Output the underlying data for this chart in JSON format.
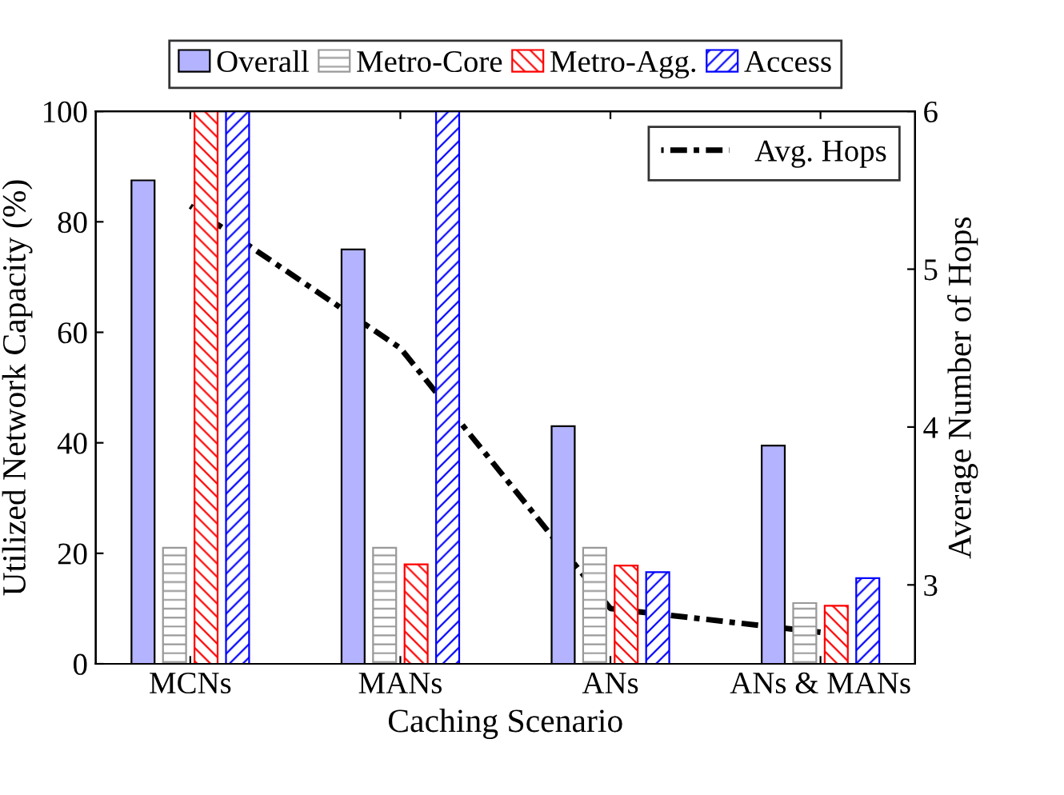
{
  "chart_data": {
    "type": "bar",
    "xlabel": "Caching Scenario",
    "ylabel": "Utilized Network Capacity (%)",
    "y2label": "Average Number of Hops",
    "categories": [
      "MCNs",
      "MANs",
      "ANs",
      "ANs & MANs"
    ],
    "series": [
      {
        "name": "Overall",
        "color": "#b3b3ff",
        "values": [
          87.5,
          75,
          43,
          39.5
        ]
      },
      {
        "name": "Metro-Core",
        "color": "#999999",
        "values": [
          21,
          21,
          21,
          11
        ]
      },
      {
        "name": "Metro-Agg.",
        "color": "#ff0000",
        "values": [
          100,
          18,
          17.8,
          10.5
        ]
      },
      {
        "name": "Access",
        "color": "#0000ff",
        "values": [
          100,
          100,
          16.6,
          15.5
        ]
      },
      {
        "name": "Avg. Hops",
        "type": "line",
        "axis": "y2",
        "color": "#000000",
        "line_style": "dashdot",
        "values": [
          5.4,
          4.5,
          2.85,
          2.7
        ]
      }
    ],
    "ylim": [
      0,
      100
    ],
    "yticks": [
      0,
      20,
      40,
      60,
      80,
      100
    ],
    "y2lim": [
      2.5,
      6
    ],
    "y2ticks": [
      3,
      4,
      5,
      6
    ],
    "legend": "top",
    "grid": false
  }
}
